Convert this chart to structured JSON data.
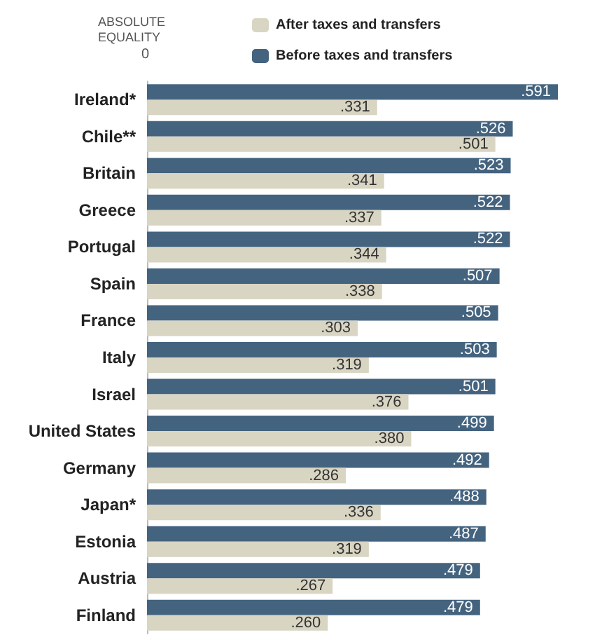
{
  "chart_data": {
    "type": "bar",
    "orientation": "horizontal",
    "categories": [
      "Ireland*",
      "Chile**",
      "Britain",
      "Greece",
      "Portugal",
      "Spain",
      "France",
      "Italy",
      "Israel",
      "United States",
      "Germany",
      "Japan*",
      "Estonia",
      "Austria",
      "Finland"
    ],
    "series": [
      {
        "name": "Before taxes and transfers",
        "color": "#44637f",
        "values": [
          0.591,
          0.526,
          0.523,
          0.522,
          0.522,
          0.507,
          0.505,
          0.503,
          0.501,
          0.499,
          0.492,
          0.488,
          0.487,
          0.479,
          0.479
        ],
        "value_labels": [
          ".591",
          ".526",
          ".523",
          ".522",
          ".522",
          ".507",
          ".505",
          ".503",
          ".501",
          ".499",
          ".492",
          ".488",
          ".487",
          ".479",
          ".479"
        ]
      },
      {
        "name": "After taxes and transfers",
        "color": "#d9d5c3",
        "values": [
          0.331,
          0.501,
          0.341,
          0.337,
          0.344,
          0.338,
          0.303,
          0.319,
          0.376,
          0.38,
          0.286,
          0.336,
          0.319,
          0.267,
          0.26
        ],
        "value_labels": [
          ".331",
          ".501",
          ".341",
          ".337",
          ".344",
          ".338",
          ".303",
          ".319",
          ".376",
          ".380",
          ".286",
          ".336",
          ".319",
          ".267",
          ".260"
        ]
      }
    ],
    "annotations": [
      "ABSOLUTE EQUALITY",
      "0"
    ],
    "legend": "top",
    "grid": false
  }
}
